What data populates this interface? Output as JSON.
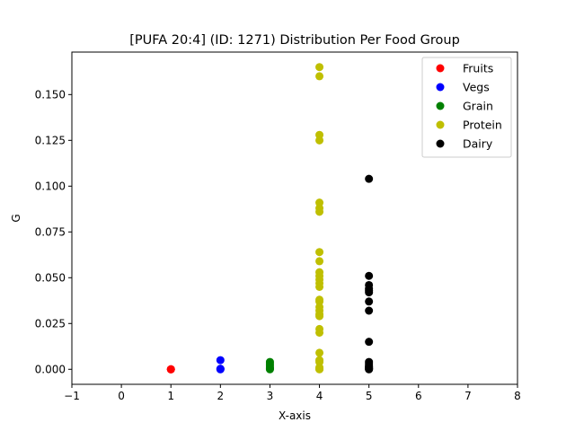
{
  "chart_data": {
    "type": "scatter",
    "title": "[PUFA 20:4] (ID: 1271) Distribution Per Food Group",
    "xlabel": "X-axis",
    "ylabel": "G",
    "xlim": [
      -1,
      8
    ],
    "ylim": [
      -0.0082,
      0.1732
    ],
    "xticks": [
      "−1",
      "0",
      "1",
      "2",
      "3",
      "4",
      "5",
      "6",
      "7",
      "8"
    ],
    "xtick_values": [
      -1,
      0,
      1,
      2,
      3,
      4,
      5,
      6,
      7,
      8
    ],
    "yticks": [
      "0.000",
      "0.025",
      "0.050",
      "0.075",
      "0.100",
      "0.125",
      "0.150"
    ],
    "ytick_values": [
      0,
      0.025,
      0.05,
      0.075,
      0.1,
      0.125,
      0.15
    ],
    "grid": false,
    "legend_position": "top-right",
    "series": [
      {
        "name": "Fruits",
        "color": "#ff0000",
        "x": [
          1,
          1,
          1
        ],
        "y": [
          0,
          0,
          0
        ]
      },
      {
        "name": "Vegs",
        "color": "#0000ff",
        "x": [
          2,
          2,
          2,
          2
        ],
        "y": [
          0.005,
          0.0003,
          0.0001,
          0
        ]
      },
      {
        "name": "Grain",
        "color": "#008000",
        "x": [
          3,
          3,
          3,
          3,
          3,
          3,
          3
        ],
        "y": [
          0.004,
          0.003,
          0.002,
          0.001,
          0.0005,
          0.0002,
          0
        ]
      },
      {
        "name": "Protein",
        "color": "#bfbf00",
        "x": [
          4,
          4,
          4,
          4,
          4,
          4,
          4,
          4,
          4,
          4,
          4,
          4,
          4,
          4,
          4,
          4,
          4,
          4,
          4,
          4,
          4,
          4,
          4,
          4,
          4,
          4,
          4,
          4,
          4,
          4
        ],
        "y": [
          0.165,
          0.16,
          0.128,
          0.125,
          0.091,
          0.088,
          0.086,
          0.064,
          0.059,
          0.053,
          0.051,
          0.049,
          0.047,
          0.045,
          0.038,
          0.037,
          0.034,
          0.032,
          0.03,
          0.029,
          0.022,
          0.02,
          0.009,
          0.005,
          0.004,
          0.001,
          0.0005,
          0.0002,
          0.0001,
          0
        ]
      },
      {
        "name": "Dairy",
        "color": "#000000",
        "x": [
          5,
          5,
          5,
          5,
          5,
          5,
          5,
          5,
          5,
          5,
          5,
          5,
          5,
          5,
          5,
          5,
          5,
          5
        ],
        "y": [
          0.104,
          0.051,
          0.046,
          0.044,
          0.043,
          0.042,
          0.037,
          0.032,
          0.015,
          0.004,
          0.003,
          0.002,
          0.0015,
          0.001,
          0.0006,
          0.0003,
          0.0001,
          0
        ]
      }
    ]
  }
}
